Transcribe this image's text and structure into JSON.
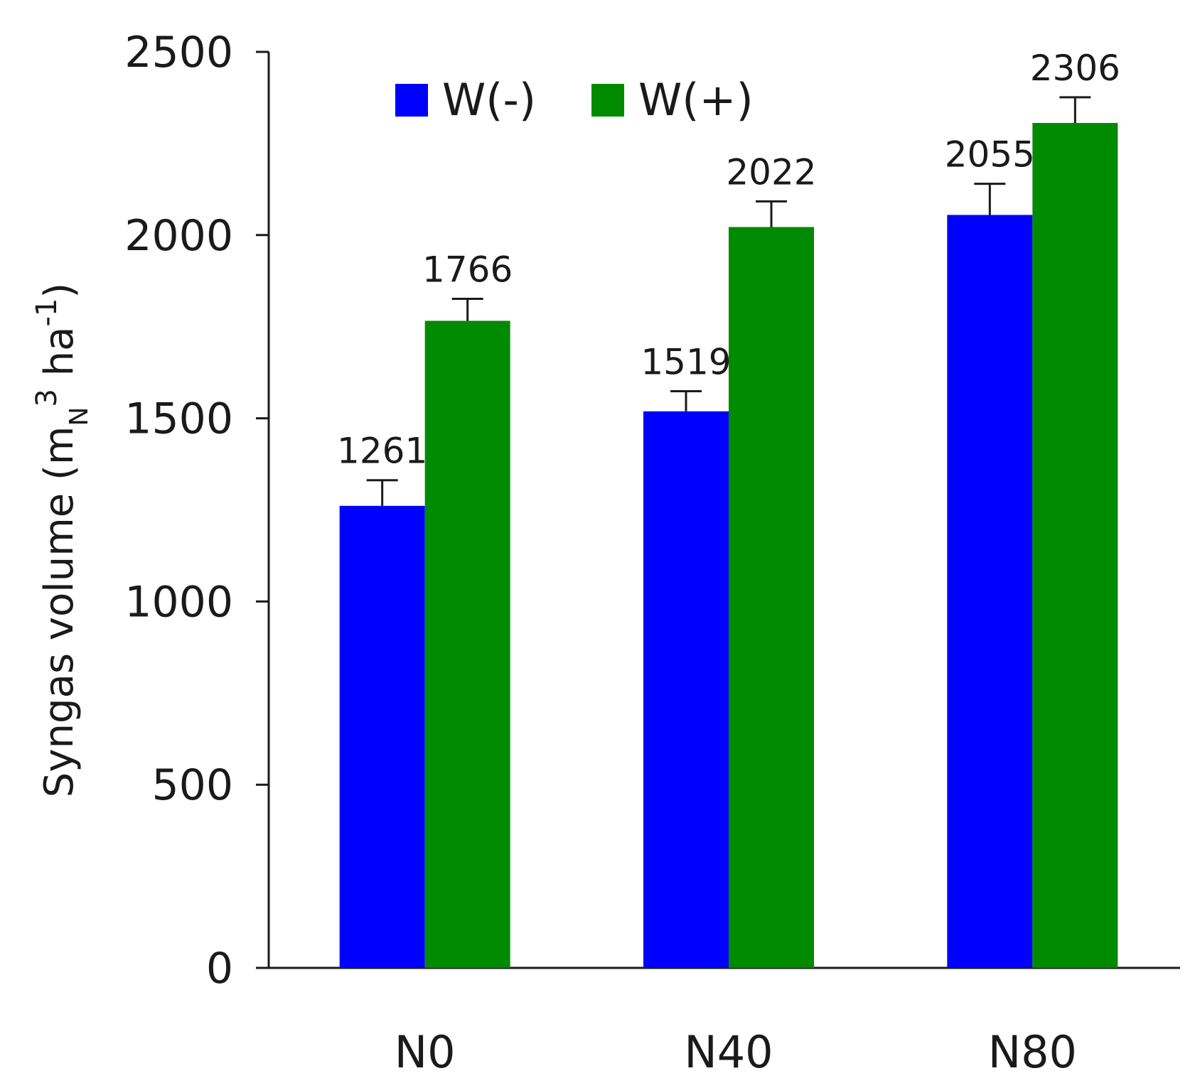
{
  "chart_data": {
    "type": "bar",
    "categories": [
      "N0",
      "N40",
      "N80"
    ],
    "series": [
      {
        "name": "W(-)",
        "color": "#0000ff",
        "values": [
          1261,
          1519,
          2055
        ],
        "error": [
          70,
          55,
          85
        ]
      },
      {
        "name": "W(+)",
        "color": "#008a00",
        "values": [
          1766,
          2022,
          2306
        ],
        "error": [
          60,
          70,
          70
        ]
      }
    ],
    "data_labels": [
      [
        "1261",
        "1519",
        "2055"
      ],
      [
        "1766",
        "2022",
        "2306"
      ]
    ],
    "ylim": [
      0,
      2500
    ],
    "yticks": [
      0,
      500,
      1000,
      1500,
      2000,
      2500
    ],
    "ylabel": {
      "main": "Syngas volume (m",
      "sub": "N",
      "sup": "3",
      "unit": " ha",
      "unit_sup": "-1",
      "close": ")"
    },
    "xlabel": "",
    "title": "",
    "legend": {
      "position": "top-left",
      "entries": [
        "W(-)",
        "W(+)"
      ]
    },
    "grid": false
  }
}
